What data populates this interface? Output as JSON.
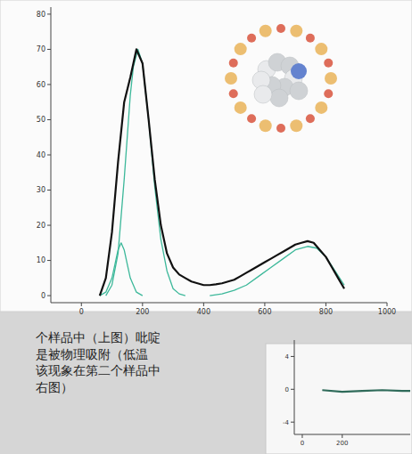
{
  "chart_data": [
    {
      "type": "line",
      "xlim": [
        -100,
        1000
      ],
      "xticks": [
        0,
        200,
        400,
        600,
        800,
        1000
      ],
      "ylim": [
        -2,
        82
      ],
      "yticks": [
        0,
        10,
        20,
        30,
        40,
        50,
        60,
        70,
        80
      ],
      "series": [
        {
          "color": "#111111",
          "x": [
            60,
            80,
            100,
            120,
            140,
            160,
            180,
            200,
            220,
            240,
            260,
            280,
            300,
            320,
            340,
            360,
            380,
            400,
            420,
            440,
            460,
            480,
            500,
            520,
            540,
            560,
            580,
            600,
            620,
            640,
            660,
            680,
            700,
            720,
            740,
            760,
            780,
            800,
            820,
            840,
            860
          ],
          "values": [
            0,
            5,
            18,
            38,
            55,
            62,
            70,
            66,
            50,
            33,
            20,
            12,
            8,
            6,
            5,
            4,
            3.5,
            3,
            3,
            3.2,
            3.5,
            4,
            4.5,
            5.5,
            6.5,
            7.5,
            8.5,
            9.5,
            10.5,
            11.5,
            12.5,
            13.5,
            14.5,
            15,
            15.5,
            15,
            13,
            11,
            8,
            5,
            2
          ]
        },
        {
          "color": "#3cb89a",
          "x": [
            60,
            80,
            100,
            110,
            120,
            130,
            140,
            150,
            160,
            180,
            200
          ],
          "values": [
            0,
            1,
            5,
            9,
            13,
            15,
            13,
            9,
            5,
            1,
            0
          ]
        },
        {
          "color": "#3cb89a",
          "x": [
            80,
            100,
            120,
            140,
            160,
            170,
            185,
            200,
            220,
            240,
            260,
            280,
            300,
            320,
            340
          ],
          "values": [
            0,
            3,
            12,
            33,
            57,
            65,
            70,
            66,
            50,
            31,
            16,
            7,
            2,
            0.5,
            0
          ]
        },
        {
          "color": "#3cb89a",
          "x": [
            420,
            460,
            500,
            540,
            580,
            620,
            660,
            700,
            740,
            770,
            800,
            830,
            860
          ],
          "values": [
            0,
            0.5,
            1.5,
            3,
            5.5,
            8,
            10.5,
            13,
            14,
            13.5,
            11,
            7,
            3
          ]
        }
      ]
    },
    {
      "type": "line",
      "xlim": [
        -40,
        540
      ],
      "xticks": [
        0,
        200
      ],
      "ylim": [
        -5.5,
        6
      ],
      "yticks": [
        -4,
        0,
        4
      ],
      "series": [
        {
          "color": "#2f6b5a",
          "x": [
            100,
            200,
            300,
            400,
            500,
            540
          ],
          "values": [
            -0.1,
            -0.3,
            -0.2,
            -0.1,
            -0.2,
            -0.2
          ]
        }
      ]
    }
  ],
  "caption": {
    "lines": [
      "个样品中（上图）吡啶",
      "是被物理吸附（低温",
      "该现象在第二个样品中",
      "右图）"
    ]
  }
}
